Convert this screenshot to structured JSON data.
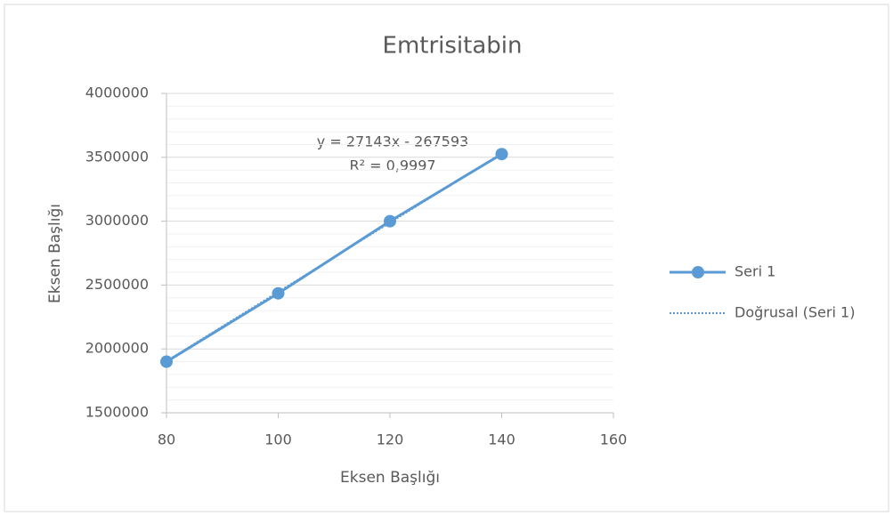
{
  "chart_data": {
    "type": "scatter",
    "title": "Emtrisitabin",
    "x_label": "Eksen Başlığı",
    "y_label": "Eksen Başlığı",
    "series": [
      {
        "name": "Seri 1",
        "color": "#5b9bd5",
        "x": [
          80,
          100,
          120,
          140
        ],
        "values": [
          1900000,
          2435000,
          3000000,
          3525000
        ],
        "markers": true,
        "dashed": false
      },
      {
        "name": "Doğrusal (Seri 1)",
        "color": "#5b9bd5",
        "x": [
          80,
          140
        ],
        "values": [
          1905000,
          3530000
        ],
        "markers": false,
        "dashed": true
      }
    ],
    "annotations": [
      "y = 27143x - 267593",
      "R² = 0,9997"
    ],
    "xlim": [
      80,
      160
    ],
    "xticks": [
      80,
      100,
      120,
      140,
      160
    ],
    "ylim": [
      1500000,
      4000000
    ],
    "yticks": [
      1500000,
      2000000,
      2500000,
      3000000,
      3500000,
      4000000
    ],
    "grid": true,
    "minor_grid_per_major": 5,
    "legend": "right"
  }
}
